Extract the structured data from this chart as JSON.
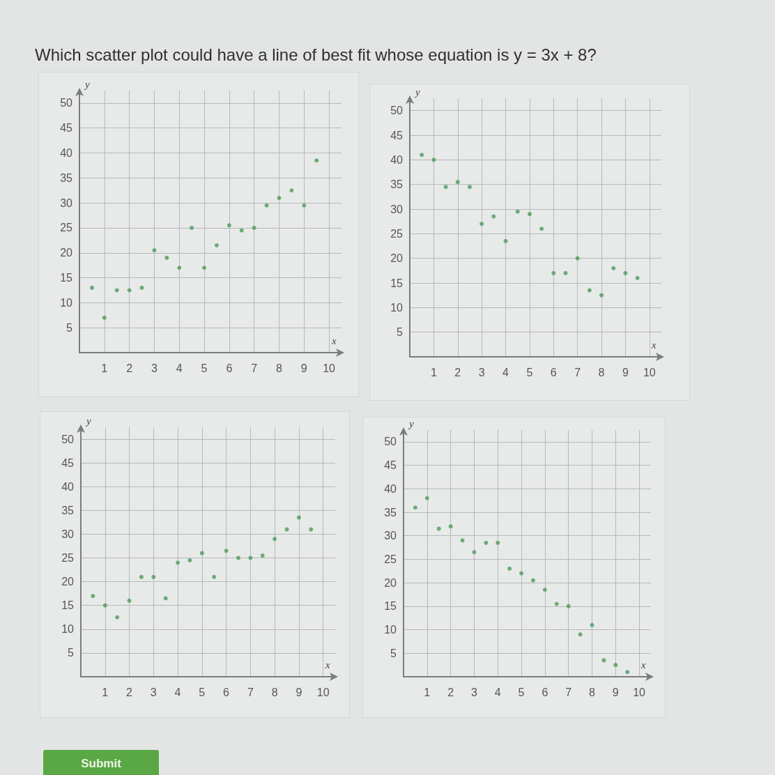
{
  "chart_data": [
    {
      "type": "other",
      "title": "Which scatter plot could have a line of best fit whose equation is y = 3x + 8?"
    },
    {
      "type": "scatter",
      "x": [
        0.5,
        1,
        1.5,
        2,
        2.5,
        3,
        3.5,
        4,
        4.5,
        5,
        5.5,
        6,
        6.5,
        7,
        7.5,
        8,
        8.5,
        9,
        9.5
      ],
      "values": [
        13,
        7,
        12.5,
        12.5,
        13,
        20.5,
        19,
        17,
        25,
        17,
        21.5,
        25.5,
        24.5,
        25,
        29.5,
        31,
        32.5,
        29.5,
        38.5
      ],
      "color": "#4e9a5c",
      "xlabel": "x",
      "ylabel": "y",
      "xlim": [
        0,
        10.5
      ],
      "ylim": [
        0,
        52.5
      ],
      "xticks": [
        1,
        2,
        3,
        4,
        5,
        6,
        7,
        8,
        9,
        10
      ],
      "yticks": [
        5,
        10,
        15,
        20,
        25,
        30,
        35,
        40,
        45,
        50
      ],
      "grid": true,
      "marker": "circle"
    },
    {
      "type": "scatter",
      "x": [
        0.5,
        1,
        1.5,
        2,
        2.5,
        3,
        3.5,
        4,
        4.5,
        5,
        5.5,
        6,
        6.5,
        7,
        7.5,
        8,
        8.5,
        9,
        9.5
      ],
      "values": [
        41,
        40,
        34.5,
        35.5,
        34.5,
        27,
        28.5,
        23.5,
        29.5,
        29,
        26,
        17,
        17,
        20,
        13.5,
        12.5,
        18,
        17,
        16
      ],
      "color": "#4e9a5c",
      "xlabel": "x",
      "ylabel": "y",
      "xlim": [
        0,
        10.5
      ],
      "ylim": [
        0,
        52.5
      ],
      "xticks": [
        1,
        2,
        3,
        4,
        5,
        6,
        7,
        8,
        9,
        10
      ],
      "yticks": [
        5,
        10,
        15,
        20,
        25,
        30,
        35,
        40,
        45,
        50
      ],
      "grid": true,
      "marker": "circle"
    },
    {
      "type": "scatter",
      "x": [
        0.5,
        1,
        1.5,
        2,
        2.5,
        3,
        3.5,
        4,
        4.5,
        5,
        5.5,
        6,
        6.5,
        7,
        7.5,
        8,
        8.5,
        9,
        9.5
      ],
      "values": [
        17,
        15,
        12.5,
        16,
        21,
        21,
        16.5,
        24,
        24.5,
        26,
        21,
        26.5,
        25,
        25,
        25.5,
        29,
        31,
        33.5,
        31
      ],
      "color": "#4e9a5c",
      "xlabel": "x",
      "ylabel": "y",
      "xlim": [
        0,
        10.5
      ],
      "ylim": [
        0,
        52.5
      ],
      "xticks": [
        1,
        2,
        3,
        4,
        5,
        6,
        7,
        8,
        9,
        10
      ],
      "yticks": [
        5,
        10,
        15,
        20,
        25,
        30,
        35,
        40,
        45,
        50
      ],
      "grid": true,
      "marker": "circle"
    },
    {
      "type": "scatter",
      "x": [
        0.5,
        1,
        1.5,
        2,
        2.5,
        3,
        3.5,
        4,
        4.5,
        5,
        5.5,
        6,
        6.5,
        7,
        7.5,
        8,
        8.5,
        9,
        9.5
      ],
      "values": [
        36,
        38,
        31.5,
        32,
        29,
        26.5,
        28.5,
        28.5,
        23,
        22,
        20.5,
        18.5,
        15.5,
        15,
        9,
        11,
        3.5,
        2.5,
        1
      ],
      "color": "#4e9a5c",
      "xlabel": "x",
      "ylabel": "y",
      "xlim": [
        0,
        10.5
      ],
      "ylim": [
        0,
        52.5
      ],
      "xticks": [
        1,
        2,
        3,
        4,
        5,
        6,
        7,
        8,
        9,
        10
      ],
      "yticks": [
        5,
        10,
        15,
        20,
        25,
        30,
        35,
        40,
        45,
        50
      ],
      "grid": true,
      "marker": "circle"
    },
    {
      "type": "other",
      "annotations": [
        "Submit"
      ]
    }
  ]
}
